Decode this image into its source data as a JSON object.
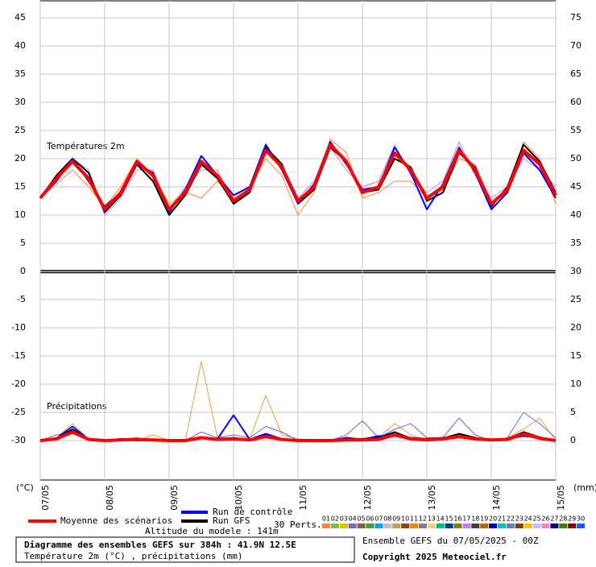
{
  "chart_data": {
    "type": "line",
    "annotations": [
      "Températures 2m",
      "Précipitations"
    ],
    "ylabel": "(°C)",
    "y2label": "(mm)",
    "x": [
      0,
      6,
      12,
      18,
      24,
      30,
      36,
      42,
      48,
      54,
      60,
      66,
      72,
      78,
      84,
      90,
      96,
      102,
      108,
      114,
      120,
      126,
      132,
      138,
      144,
      150,
      156,
      162,
      168,
      174,
      180,
      186,
      192
    ],
    "xlim": [
      0,
      192
    ],
    "xticks": [
      {
        "value": 0,
        "label": "07/05"
      },
      {
        "value": 24,
        "label": "08/05"
      },
      {
        "value": 48,
        "label": "09/05"
      },
      {
        "value": 72,
        "label": "10/05"
      },
      {
        "value": 96,
        "label": "11/05"
      },
      {
        "value": 120,
        "label": "12/05"
      },
      {
        "value": 144,
        "label": "13/05"
      },
      {
        "value": 168,
        "label": "14/05"
      },
      {
        "value": 192,
        "label": "15/05"
      }
    ],
    "ylim": [
      -37,
      48
    ],
    "yticks": [
      -30,
      -25,
      -20,
      -15,
      -10,
      -5,
      0,
      5,
      10,
      15,
      20,
      25,
      30,
      35,
      40,
      45
    ],
    "y2lim": [
      -7,
      78
    ],
    "y2ticks": [
      0,
      5,
      10,
      15,
      20,
      25,
      30,
      35,
      40,
      45,
      50,
      55,
      60,
      65,
      70,
      75
    ],
    "grid": true,
    "series": [
      {
        "color": "#ff8040",
        "width": 1,
        "values": [
          13,
          15.5,
          18,
          15,
          11.5,
          15,
          20,
          17,
          12,
          14,
          13,
          16,
          13,
          15,
          20,
          17,
          10,
          14,
          23.5,
          21,
          13,
          14,
          16,
          16,
          13,
          14.5,
          20,
          19,
          12,
          14,
          23,
          20,
          12
        ]
      },
      {
        "color": "#c080ff",
        "width": 1,
        "values": [
          13,
          17,
          20,
          18,
          10,
          13,
          18,
          18,
          11,
          15,
          18,
          18,
          12,
          14,
          21,
          19,
          13,
          16,
          22,
          18,
          15,
          16,
          22.5,
          17,
          14,
          16,
          23,
          17,
          13,
          15,
          20,
          18,
          15
        ]
      },
      {
        "color": "#000000",
        "width": 2,
        "values": [
          13,
          17,
          20,
          17.5,
          10.5,
          13.5,
          19,
          16,
          10,
          13.5,
          19,
          16.5,
          12,
          14,
          22,
          19,
          12,
          14.5,
          22,
          19.5,
          14,
          14.5,
          20,
          18.5,
          12.5,
          14,
          21,
          18.5,
          11.5,
          15,
          22.5,
          19.5,
          14
        ]
      },
      {
        "color": "#0000ff",
        "width": 2,
        "values": [
          13,
          16,
          20,
          16,
          11.5,
          14,
          19,
          17.5,
          10.5,
          14.5,
          20.5,
          17,
          13.5,
          15,
          22.5,
          18,
          12,
          15.5,
          23,
          19,
          14.5,
          15,
          22,
          17.5,
          11,
          15.5,
          22,
          17.5,
          11,
          14,
          21,
          18,
          13
        ]
      },
      {
        "color": "#ff0000",
        "width": 4,
        "values": [
          13,
          16.5,
          19.5,
          16.5,
          11,
          14,
          19.5,
          17,
          11,
          14,
          19.5,
          17,
          12.5,
          14.5,
          21.5,
          18.5,
          12.5,
          15,
          22.5,
          19.5,
          14,
          15,
          21,
          18,
          13,
          15,
          21.5,
          18,
          12,
          14.5,
          21.5,
          19,
          13.5
        ]
      },
      {
        "color": "#e0a040",
        "width": 1,
        "axis": "y2",
        "values": [
          0,
          0.5,
          3,
          0.3,
          0,
          0.3,
          0,
          1,
          0,
          0,
          14,
          0.5,
          0.5,
          0.2,
          8,
          1,
          0.3,
          0,
          0,
          0,
          0,
          0.5,
          3,
          1,
          0,
          0.3,
          1,
          0.5,
          0,
          0.5,
          2,
          4,
          0
        ]
      },
      {
        "color": "#8060c0",
        "width": 1,
        "axis": "y2",
        "values": [
          0,
          1,
          1.5,
          0,
          0,
          0.2,
          0.5,
          0,
          0,
          0,
          1.5,
          0.5,
          1,
          0.5,
          2.5,
          1.5,
          0,
          0,
          0,
          1,
          3.5,
          0.5,
          2,
          3,
          0.5,
          0.5,
          4,
          1,
          0,
          0.5,
          5,
          3,
          0.5
        ]
      },
      {
        "color": "#000000",
        "width": 2,
        "axis": "y2",
        "values": [
          0,
          0.3,
          2,
          0.2,
          0,
          0.2,
          0.1,
          0.1,
          0,
          0,
          0.4,
          0.2,
          0.5,
          0.1,
          1,
          0.3,
          0,
          0,
          0,
          0.2,
          0.3,
          0.5,
          1.5,
          0.4,
          0.2,
          0.4,
          1.2,
          0.5,
          0.1,
          0.3,
          1.5,
          0.6,
          0
        ]
      },
      {
        "color": "#0000ff",
        "width": 2,
        "axis": "y2",
        "values": [
          0,
          0.4,
          2.5,
          0.2,
          0,
          0.3,
          0,
          0.2,
          0,
          0,
          0.6,
          0.3,
          4.5,
          0.2,
          1.2,
          0.3,
          0,
          0,
          0,
          0.5,
          0.2,
          0.8,
          0.8,
          0.5,
          0.3,
          0.5,
          0.6,
          0.4,
          0.2,
          0.3,
          0.8,
          0.5,
          0
        ]
      },
      {
        "color": "#ff0000",
        "width": 4,
        "axis": "y2",
        "values": [
          0,
          0.3,
          1.5,
          0.2,
          0,
          0.1,
          0.2,
          0.1,
          0,
          0,
          0.5,
          0.2,
          0.3,
          0.1,
          0.7,
          0.2,
          0,
          0,
          0,
          0.1,
          0.1,
          0.2,
          1.0,
          0.3,
          0.1,
          0.3,
          0.7,
          0.3,
          0.1,
          0.2,
          1.2,
          0.4,
          0
        ]
      }
    ]
  },
  "legend": {
    "runs": [
      {
        "name": "Moyenne des scénarios",
        "color": "#ff0000"
      },
      {
        "name": "Run de contrôle",
        "color": "#0000ff"
      },
      {
        "name": "Run GFS",
        "color": "#000000"
      }
    ],
    "perts_title": "30 Perts.",
    "perts": [
      {
        "label": "01",
        "color": "#ff8040"
      },
      {
        "label": "02",
        "color": "#80c040"
      },
      {
        "label": "03",
        "color": "#e0c000"
      },
      {
        "label": "04",
        "color": "#8060c0"
      },
      {
        "label": "05",
        "color": "#806040"
      },
      {
        "label": "06",
        "color": "#40a040"
      },
      {
        "label": "07",
        "color": "#00a0ff"
      },
      {
        "label": "08",
        "color": "#c0c0c0"
      },
      {
        "label": "09",
        "color": "#c0a060"
      },
      {
        "label": "10",
        "color": "#8b4513"
      },
      {
        "label": "11",
        "color": "#ff8000"
      },
      {
        "label": "12",
        "color": "#808080"
      },
      {
        "label": "13",
        "color": "#ffd080"
      },
      {
        "label": "14",
        "color": "#00c080"
      },
      {
        "label": "15",
        "color": "#004080"
      },
      {
        "label": "16",
        "color": "#808000"
      },
      {
        "label": "17",
        "color": "#c080ff"
      },
      {
        "label": "18",
        "color": "#404040"
      },
      {
        "label": "19",
        "color": "#c06000"
      },
      {
        "label": "20",
        "color": "#0000a0"
      },
      {
        "label": "21",
        "color": "#00c0c0"
      },
      {
        "label": "22",
        "color": "#6080c0"
      },
      {
        "label": "23",
        "color": "#804000"
      },
      {
        "label": "24",
        "color": "#ffc000"
      },
      {
        "label": "25",
        "color": "#c0c0ff"
      },
      {
        "label": "26",
        "color": "#ff80c0"
      },
      {
        "label": "27",
        "color": "#000080"
      },
      {
        "label": "28",
        "color": "#408000"
      },
      {
        "label": "29",
        "color": "#800000"
      },
      {
        "label": "30",
        "color": "#0060ff"
      }
    ]
  },
  "footer": {
    "altitude": "Altitude du modele : 141m",
    "title": "Diagramme des ensembles GEFS sur 384h : 41.9N 12.5E",
    "subtitle": "Température 2m (°C) , précipitations (mm)",
    "run": "Ensemble GEFS du 07/05/2025 - 00Z",
    "copyright": "Copyright 2025 Meteociel.fr"
  }
}
